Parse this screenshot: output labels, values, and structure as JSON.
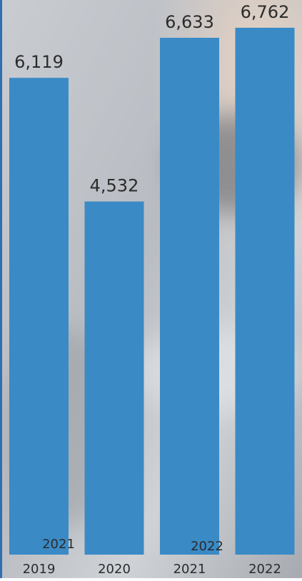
{
  "chart_data": {
    "type": "bar",
    "categories": [
      "2019",
      "2020",
      "2021",
      "2022"
    ],
    "values": [
      6119,
      4532,
      6633,
      6762
    ],
    "value_labels": [
      "6,119",
      "4,532",
      "6,633",
      "6,762"
    ],
    "color": "#3a8ac6",
    "annotations": [
      "2021",
      "2022"
    ]
  }
}
